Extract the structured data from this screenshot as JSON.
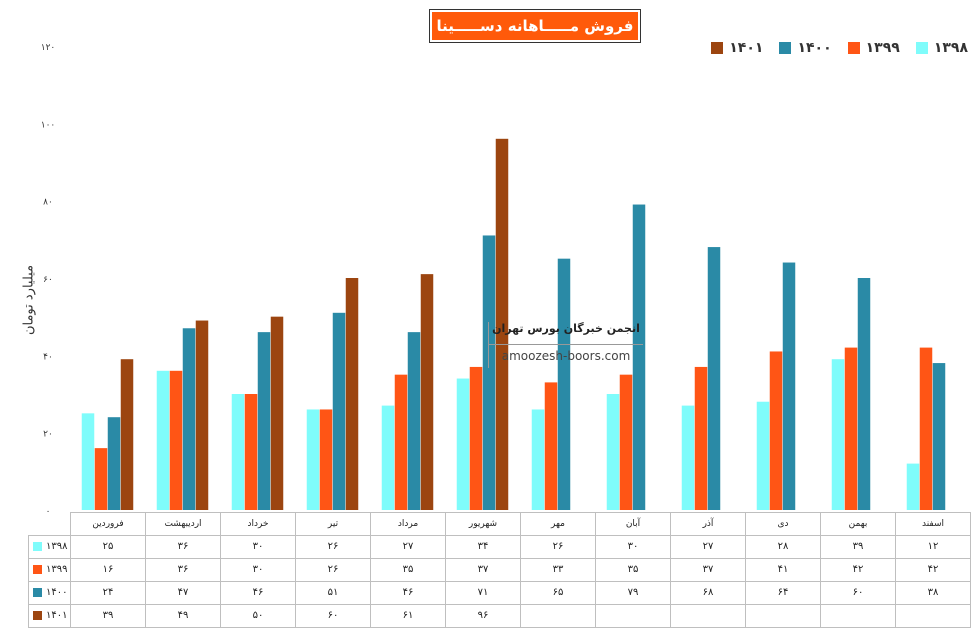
{
  "chart_data": {
    "type": "bar",
    "title": "فروش مـــــاهانه دســـــینا",
    "ylabel": "میلیارد تومان",
    "ylim": [
      0,
      120
    ],
    "yticks": [
      "۰",
      "۲۰",
      "۴۰",
      "۶۰",
      "۸۰",
      "۱۰۰",
      "۱۲۰"
    ],
    "categories": [
      "فروردین",
      "اردیبهشت",
      "خرداد",
      "تیر",
      "مرداد",
      "شهریور",
      "مهر",
      "آبان",
      "آذر",
      "دی",
      "بهمن",
      "اسفند"
    ],
    "legend_position": "top-right",
    "series": [
      {
        "name": "۱۳۹۸",
        "color": "#7ffcfb",
        "values": [
          25,
          36,
          30,
          26,
          27,
          34,
          26,
          30,
          27,
          28,
          39,
          12
        ],
        "labels": [
          "۲۵",
          "۳۶",
          "۳۰",
          "۲۶",
          "۲۷",
          "۳۴",
          "۲۶",
          "۳۰",
          "۲۷",
          "۲۸",
          "۳۹",
          "۱۲"
        ]
      },
      {
        "name": "۱۳۹۹",
        "color": "#ff5515",
        "values": [
          16,
          36,
          30,
          26,
          35,
          37,
          33,
          35,
          37,
          41,
          42,
          42
        ],
        "labels": [
          "۱۶",
          "۳۶",
          "۳۰",
          "۲۶",
          "۳۵",
          "۳۷",
          "۳۳",
          "۳۵",
          "۳۷",
          "۴۱",
          "۴۲",
          "۴۲"
        ]
      },
      {
        "name": "۱۴۰۰",
        "color": "#2a8aa6",
        "values": [
          24,
          47,
          46,
          51,
          46,
          71,
          65,
          79,
          68,
          64,
          60,
          38
        ],
        "labels": [
          "۲۴",
          "۴۷",
          "۴۶",
          "۵۱",
          "۴۶",
          "۷۱",
          "۶۵",
          "۷۹",
          "۶۸",
          "۶۴",
          "۶۰",
          "۳۸"
        ]
      },
      {
        "name": "۱۴۰۱",
        "color": "#9c4510",
        "values": [
          39,
          49,
          50,
          60,
          61,
          96,
          null,
          null,
          null,
          null,
          null,
          null
        ],
        "labels": [
          "۳۹",
          "۴۹",
          "۵۰",
          "۶۰",
          "۶۱",
          "۹۶",
          "",
          "",
          "",
          "",
          "",
          ""
        ]
      }
    ]
  },
  "watermark": {
    "name": "انجمن خبرگان بورس تهران",
    "url": "amoozesh-boors.com"
  }
}
